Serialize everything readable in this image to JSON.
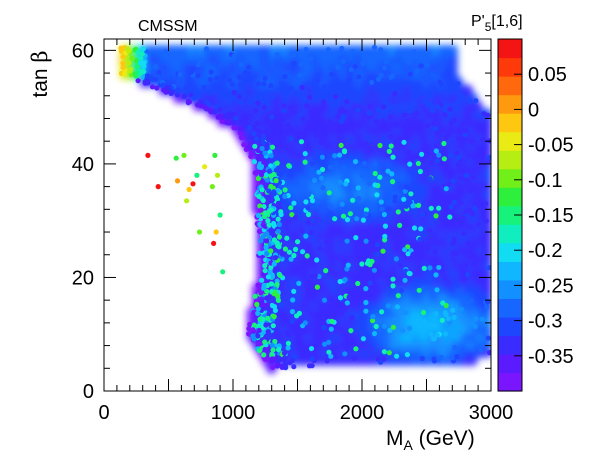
{
  "chart_data": {
    "type": "scatter",
    "title": "CMSSM",
    "xlabel": "M_A (GeV)",
    "ylabel": "tan β",
    "xlim": [
      0,
      3000
    ],
    "ylim": [
      0,
      62
    ],
    "x_ticks": [
      0,
      1000,
      2000,
      3000
    ],
    "y_ticks": [
      0,
      20,
      40,
      60
    ],
    "colorbar": {
      "label": "P'5[1,6]",
      "range": [
        -0.4,
        0.1
      ],
      "ticks": [
        0.05,
        0,
        -0.05,
        -0.1,
        -0.15,
        -0.2,
        -0.25,
        -0.3,
        -0.35
      ],
      "colors": [
        "#7a16ff",
        "#5a1cff",
        "#3a2cff",
        "#1f46ff",
        "#1766ff",
        "#1290ff",
        "#10b6ff",
        "#12dcf2",
        "#10eec0",
        "#16f27c",
        "#2ef03c",
        "#70f018",
        "#b6ee14",
        "#eaea14",
        "#ffc810",
        "#ff9a0e",
        "#ff680c",
        "#ff3a0a",
        "#f51414"
      ]
    },
    "outliers": [
      {
        "x": 340,
        "y": 41.5,
        "value": 0.09
      },
      {
        "x": 420,
        "y": 36.0,
        "value": 0.09
      },
      {
        "x": 560,
        "y": 41.0,
        "value": -0.12
      },
      {
        "x": 570,
        "y": 37.0,
        "value": 0.0
      },
      {
        "x": 620,
        "y": 41.5,
        "value": -0.1
      },
      {
        "x": 640,
        "y": 33.5,
        "value": -0.08
      },
      {
        "x": 660,
        "y": 35.5,
        "value": -0.02
      },
      {
        "x": 690,
        "y": 36.5,
        "value": 0.08
      },
      {
        "x": 720,
        "y": 38.0,
        "value": -0.15
      },
      {
        "x": 740,
        "y": 28.0,
        "value": -0.1
      },
      {
        "x": 780,
        "y": 39.5,
        "value": -0.05
      },
      {
        "x": 840,
        "y": 36.0,
        "value": -0.1
      },
      {
        "x": 850,
        "y": 26.0,
        "value": 0.08
      },
      {
        "x": 870,
        "y": 28.0,
        "value": -0.02
      },
      {
        "x": 860,
        "y": 41.5,
        "value": -0.12
      },
      {
        "x": 880,
        "y": 38.0,
        "value": -0.06
      },
      {
        "x": 900,
        "y": 31.0,
        "value": -0.14
      },
      {
        "x": 920,
        "y": 21.0,
        "value": -0.14
      }
    ]
  }
}
